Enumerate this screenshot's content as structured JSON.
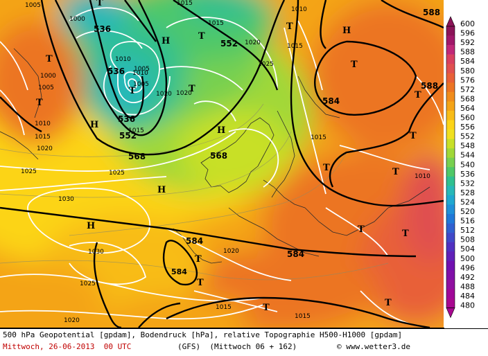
{
  "map": {
    "geopotential_contours": [
      "536",
      "536",
      "536",
      "552",
      "552",
      "568",
      "568",
      "584",
      "584",
      "584",
      "588",
      "588"
    ],
    "pressure_labels": [
      "1005",
      "1000",
      "1005",
      "1010",
      "1010",
      "1015",
      "1010",
      "1015",
      "1020",
      "1025",
      "1005",
      "1010",
      "1000",
      "1020",
      "1020",
      "1025",
      "1030",
      "1030",
      "1025",
      "1020",
      "1015",
      "1010",
      "1015",
      "1015",
      "1020",
      "1015",
      "1015",
      "1025",
      "1020",
      "1005",
      "1015"
    ],
    "high_markers": [
      "H",
      "H",
      "H",
      "H",
      "H",
      "H"
    ],
    "low_markers": [
      "T",
      "T",
      "T",
      "T",
      "T",
      "T",
      "T",
      "T",
      "T",
      "T",
      "T",
      "T",
      "T",
      "T",
      "T",
      "T",
      "T",
      "T"
    ]
  },
  "legend": {
    "unit": "gpdam",
    "values": [
      "600",
      "596",
      "592",
      "588",
      "584",
      "580",
      "576",
      "572",
      "568",
      "564",
      "560",
      "556",
      "552",
      "548",
      "544",
      "540",
      "536",
      "532",
      "528",
      "524",
      "520",
      "516",
      "512",
      "508",
      "504",
      "500",
      "496",
      "492",
      "488",
      "484",
      "480"
    ],
    "colors": [
      "#8b1458",
      "#a0186a",
      "#c02878",
      "#d84060",
      "#e05050",
      "#e86038",
      "#ec7424",
      "#f08c1c",
      "#f4a418",
      "#f8bc18",
      "#fcd418",
      "#f0e020",
      "#c8e028",
      "#a0d838",
      "#78d050",
      "#50c868",
      "#30c090",
      "#28b8b8",
      "#20a8d0",
      "#2090d8",
      "#2078d8",
      "#3060d0",
      "#4048c8",
      "#5030c0",
      "#6020b8",
      "#7010b0",
      "#8010a8",
      "#9010a0",
      "#a00898",
      "#a80890"
    ]
  },
  "footer": {
    "line1": "500 hPa Geopotential [gpdam], Bodendruck [hPa], relative Topographie H500-H1000 [gpdam]",
    "datetime": "Mittwoch, 26-06-2013  00 UTC",
    "model": "(GFS)  (Mittwoch 06 + 162)",
    "copyright": "© www.wetter3.de"
  }
}
